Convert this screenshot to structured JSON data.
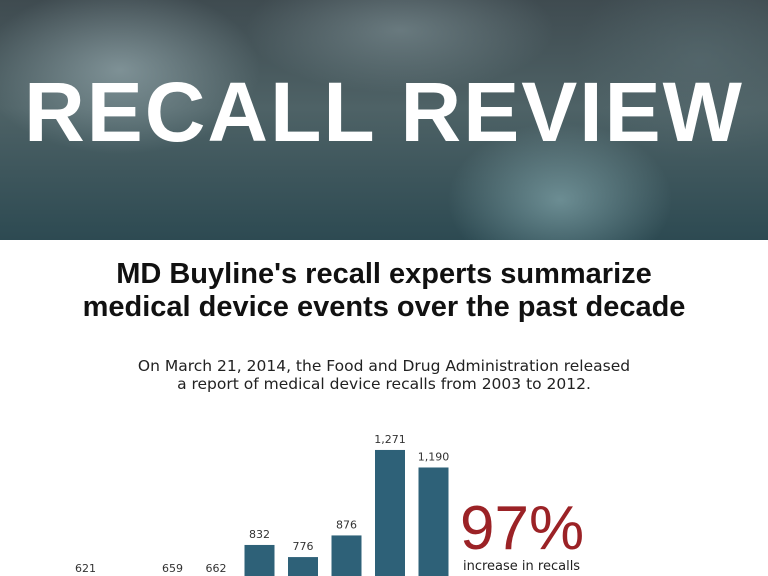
{
  "hero": {
    "title": "RECALL REVIEW"
  },
  "headline": {
    "line1": "MD Buyline's recall experts summarize",
    "line2": "medical device events over the past decade"
  },
  "intro": {
    "line1": "On March 21, 2014, the Food and Drug Administration released",
    "line2": "a report of medical device recalls from 2003 to 2012."
  },
  "highlight": {
    "value": "97%",
    "caption": "increase in recalls",
    "color": "#9b2226"
  },
  "chart_data": {
    "type": "bar",
    "values": [
      null,
      621,
      null,
      659,
      662,
      832,
      776,
      876,
      1271,
      1190
    ],
    "labels": [
      "",
      "621",
      "",
      "659",
      "662",
      "832",
      "776",
      "876",
      "1,271",
      "1,190"
    ],
    "bar_color": "#2e6178",
    "grid": false,
    "legend": "none"
  }
}
